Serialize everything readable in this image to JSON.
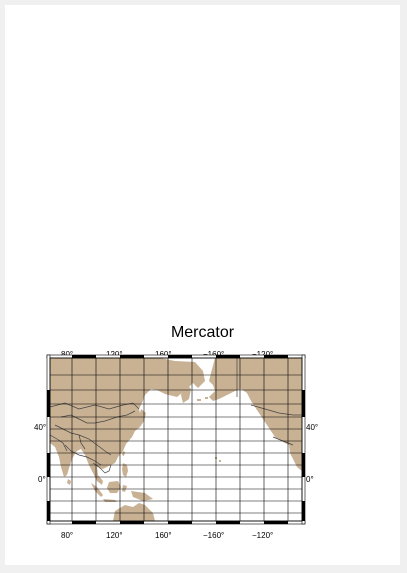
{
  "title": "Mercator",
  "projection": "mercator",
  "colors": {
    "land": "#c9b193",
    "water": "#ffffff",
    "frame": "#000000",
    "grid": "#000000",
    "borders": "#444444"
  },
  "lon_ticks": [
    "80°",
    "120°",
    "160°",
    "−160°",
    "−120°"
  ],
  "lat_left": [
    "40°",
    "0°"
  ],
  "lat_right": [
    "40°",
    "0°"
  ]
}
